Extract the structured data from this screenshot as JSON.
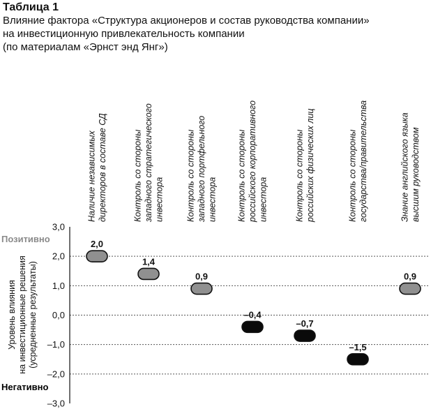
{
  "header": {
    "title": "Таблица 1",
    "subtitle_lines": [
      "Влияние фактора «Структура акционеров и состав руководства компании»",
      "на инвестиционную привлекательность компании",
      "(по материалам «Эрнст энд Янг»)"
    ]
  },
  "chart_data": {
    "type": "dot",
    "title": "Таблица 1",
    "categories": [
      [
        "Наличие независимых",
        "директоров в составе СД"
      ],
      [
        "Контроль со стороны",
        "западного стратегического",
        "инвестора"
      ],
      [
        "Контроль со стороны",
        "западного портфельного",
        "инвестора"
      ],
      [
        "Контроль со стороны",
        "российского корпоративного",
        "инвестора"
      ],
      [
        "Контроль со стороны",
        "российских физических лиц"
      ],
      [
        "Контроль со стороны",
        "государства/правительства"
      ],
      [
        "Знание английского языка",
        "высшим руководством"
      ]
    ],
    "values": [
      2.0,
      1.4,
      0.9,
      -0.4,
      -0.7,
      -1.5,
      0.9
    ],
    "value_labels": [
      "2,0",
      "1,4",
      "0,9",
      "–0,4",
      "–0,7",
      "–1,5",
      "0,9"
    ],
    "marker_colors": [
      "#909090",
      "#909090",
      "#909090",
      "#0a0a0a",
      "#0a0a0a",
      "#0a0a0a",
      "#909090"
    ],
    "ylim": [
      -3.0,
      3.0
    ],
    "yticks": [
      3.0,
      2.0,
      1.0,
      0.0,
      -1.0,
      -2.0,
      -3.0
    ],
    "ytick_labels": [
      "3,0",
      "2,0",
      "1,0",
      "0,0",
      "–1,0",
      "–2,0",
      "–3,0"
    ],
    "ylabel_lines": [
      "Уровень влияния",
      "на инвестиционные решения",
      "(усредненные результаты)"
    ],
    "positive_label": "Позитивно",
    "negative_label": "Негативно",
    "positive_color": "#8a8a8a",
    "negative_color": "#000000",
    "grid": true
  }
}
